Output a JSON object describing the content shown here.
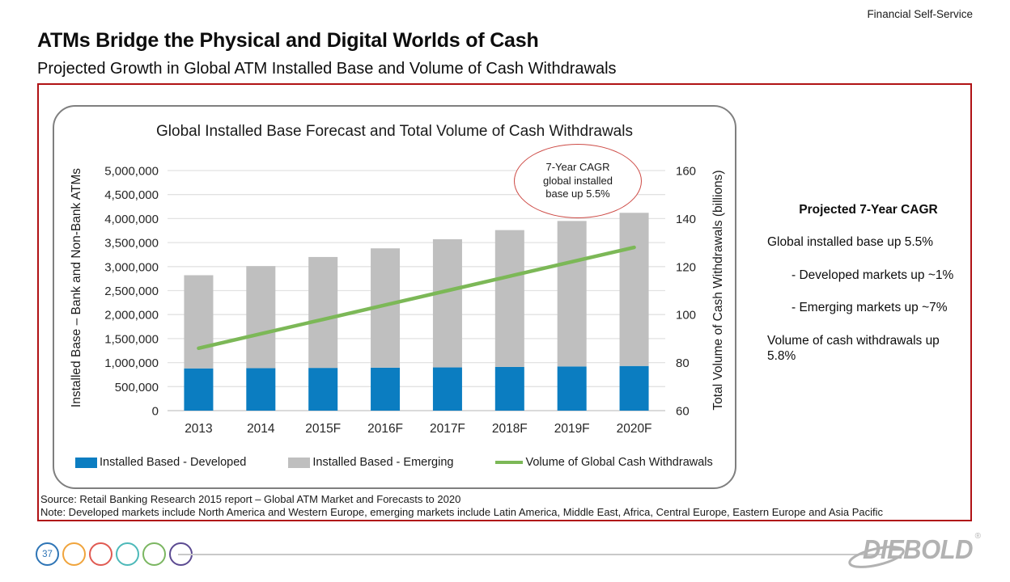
{
  "header": {
    "eyebrow": "Financial Self-Service",
    "title": "ATMs Bridge the Physical and Digital Worlds of Cash",
    "subtitle": "Projected Growth in Global ATM Installed Base and Volume of Cash Withdrawals"
  },
  "chart_data": {
    "type": "bar",
    "title": "Global Installed Base Forecast and Total Volume of Cash Withdrawals",
    "categories": [
      "2013",
      "2014",
      "2015F",
      "2016F",
      "2017F",
      "2018F",
      "2019F",
      "2020F"
    ],
    "series": [
      {
        "name": "Installed Based - Developed",
        "type": "bar",
        "stack": "installed",
        "axis": "left",
        "color": "#0b7dc1",
        "values": [
          880000,
          885000,
          890000,
          895000,
          900000,
          910000,
          920000,
          930000
        ]
      },
      {
        "name": "Installed Based - Emerging",
        "type": "bar",
        "stack": "installed",
        "axis": "left",
        "color": "#bfbfbf",
        "values": [
          1940000,
          2125000,
          2310000,
          2485000,
          2670000,
          2850000,
          3030000,
          3190000
        ]
      },
      {
        "name": "Volume of Global Cash Withdrawals",
        "type": "line",
        "axis": "right",
        "color": "#7cb857",
        "values": [
          86,
          92,
          98,
          104,
          110,
          116,
          122,
          128
        ]
      }
    ],
    "left_axis": {
      "label": "Installed Base – Bank and Non-Bank ATMs",
      "min": 0,
      "max": 5000000,
      "step": 500000,
      "tick_labels": [
        "5,000,000",
        "4,500,000",
        "4,000,000",
        "3,500,000",
        "3,000,000",
        "2,500,000",
        "2,000,000",
        "1,500,000",
        "1,000,000",
        "500,000",
        "0"
      ]
    },
    "right_axis": {
      "label": "Total Volume of Cash Withdrawals (billions)",
      "min": 60,
      "max": 160,
      "step": 20,
      "tick_labels": [
        "160",
        "140",
        "120",
        "100",
        "80",
        "60"
      ]
    },
    "annotation": {
      "lines": [
        "7-Year CAGR",
        "global installed",
        "base up 5.5%"
      ]
    },
    "grid": true,
    "legend_position": "bottom"
  },
  "callout": {
    "heading": "Projected 7-Year CAGR",
    "lines": [
      {
        "text": "Global installed base up 5.5%",
        "indent": false
      },
      {
        "text": "- Developed markets up ~1%",
        "indent": true
      },
      {
        "text": "- Emerging markets up ~7%",
        "indent": true
      },
      {
        "text": "Volume of cash withdrawals up 5.8%",
        "indent": false
      }
    ]
  },
  "footnotes": {
    "source": "Source: Retail Banking Research 2015 report – Global ATM Market and Forecasts to 2020",
    "note": "Note: Developed markets include North America and Western Europe, emerging markets include Latin America, Middle East, Africa, Central Europe, Eastern Europe and Asia Pacific"
  },
  "footer": {
    "page_number": "37",
    "circle_colors": [
      "#2e75b6",
      "#f0a43c",
      "#e05a52",
      "#4db9b9",
      "#7bb661",
      "#5b4a91"
    ],
    "logo_text": "DIEBOLD",
    "logo_reg": "®"
  },
  "colors": {
    "accent_red": "#b01215",
    "annotation_red": "#cd4a45",
    "panel_border": "#7f7f7f",
    "gridline": "#e2e2e2",
    "bar_developed": "#0b7dc1",
    "bar_emerging": "#bfbfbf",
    "line_green": "#7cb857",
    "logo_gray": "#b2b2b2"
  }
}
